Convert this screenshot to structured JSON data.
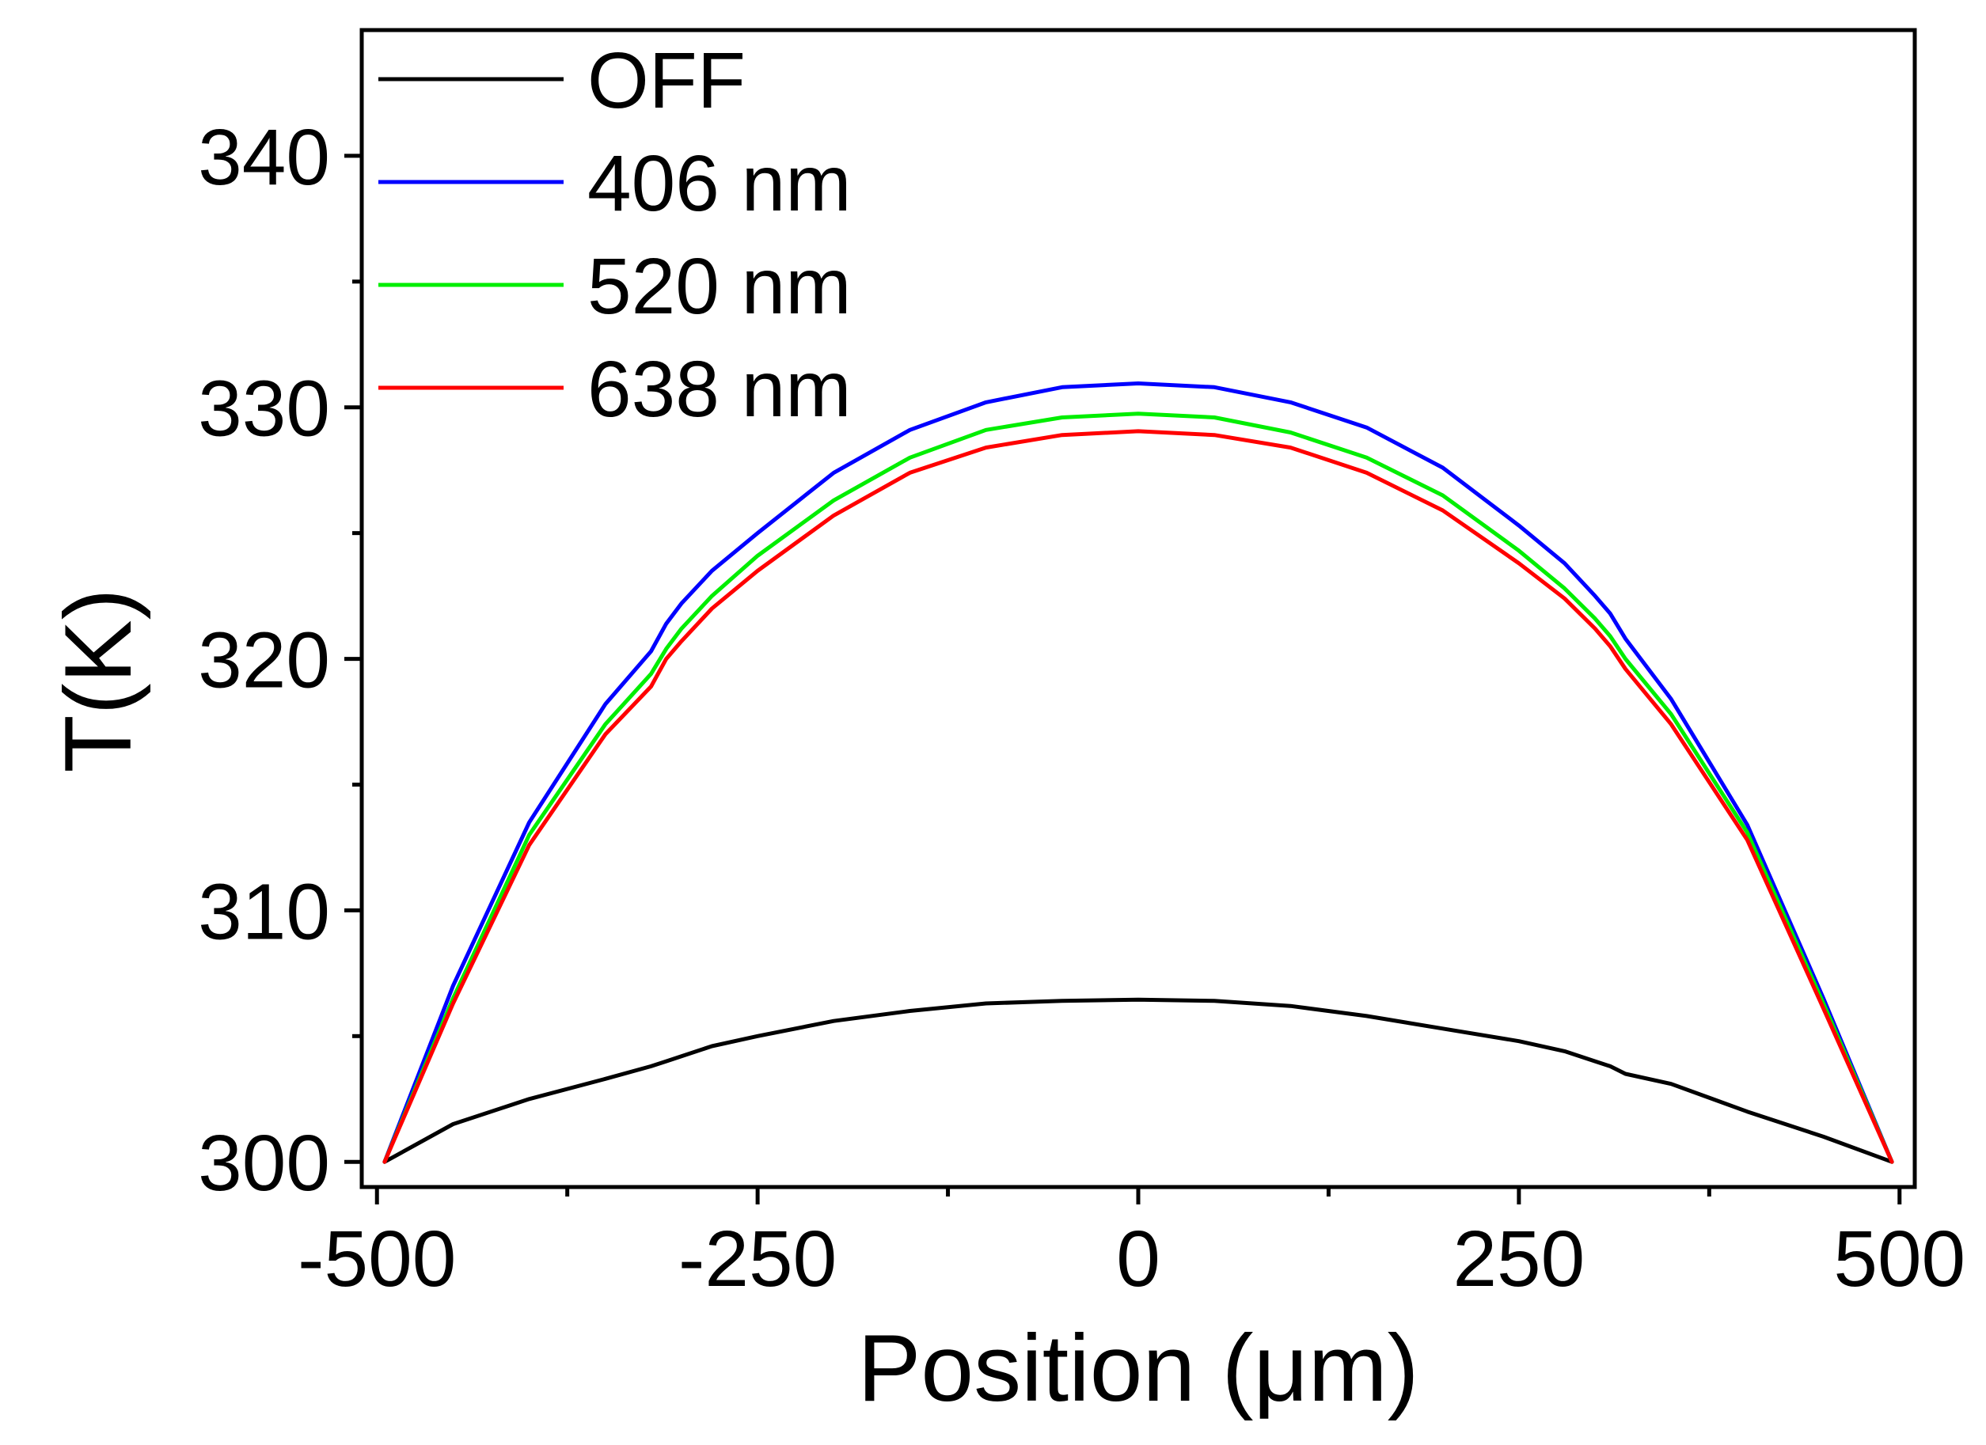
{
  "chart_data": {
    "type": "line",
    "title": "",
    "xlabel": "Position (μm)",
    "ylabel": "T(K)",
    "xlim": [
      -510,
      510
    ],
    "ylim": [
      299,
      345
    ],
    "x_major_ticks": [
      -500,
      -250,
      0,
      250,
      500
    ],
    "x_minor_ticks": [
      -375,
      -125,
      125,
      375
    ],
    "x_tick_labels": [
      "-500",
      "-250",
      "0",
      "250",
      "500"
    ],
    "y_major_ticks": [
      300,
      310,
      320,
      330,
      340
    ],
    "y_minor_ticks": [
      305,
      315,
      325,
      335
    ],
    "y_tick_labels": [
      "300",
      "310",
      "320",
      "330",
      "340"
    ],
    "grid": false,
    "legend_position": "top-left",
    "x": [
      -495,
      -450,
      -400,
      -350,
      -320,
      -310,
      -300,
      -280,
      -250,
      -200,
      -150,
      -100,
      -50,
      0,
      50,
      100,
      150,
      200,
      250,
      280,
      300,
      310,
      320,
      350,
      400,
      450,
      495
    ],
    "series": [
      {
        "name": "OFF",
        "color": "#000000",
        "values": [
          300.0,
          301.5,
          302.5,
          303.3,
          303.8,
          304.0,
          304.2,
          304.6,
          305.0,
          305.6,
          306.0,
          306.3,
          306.4,
          306.45,
          306.4,
          306.2,
          305.8,
          305.3,
          304.8,
          304.4,
          304.0,
          303.8,
          303.5,
          303.1,
          302.0,
          301.0,
          300.0
        ]
      },
      {
        "name": "406 nm",
        "color": "#0000ff",
        "values": [
          300.0,
          307.0,
          313.5,
          318.2,
          320.3,
          321.4,
          322.2,
          323.5,
          325.0,
          327.4,
          329.1,
          330.2,
          330.8,
          330.95,
          330.8,
          330.2,
          329.2,
          327.6,
          325.3,
          323.8,
          322.5,
          321.8,
          320.8,
          318.4,
          313.4,
          306.5,
          300.0
        ]
      },
      {
        "name": "520 nm",
        "color": "#00ee00",
        "values": [
          300.0,
          306.5,
          313.0,
          317.4,
          319.4,
          320.4,
          321.2,
          322.5,
          324.1,
          326.3,
          328.0,
          329.1,
          329.6,
          329.75,
          329.6,
          329.0,
          328.0,
          326.5,
          324.3,
          322.8,
          321.6,
          320.9,
          320.0,
          317.8,
          313.1,
          306.3,
          300.0
        ]
      },
      {
        "name": "638 nm",
        "color": "#ff0000",
        "values": [
          300.0,
          306.3,
          312.6,
          317.0,
          318.9,
          320.0,
          320.7,
          322.0,
          323.5,
          325.7,
          327.4,
          328.4,
          328.9,
          329.05,
          328.9,
          328.4,
          327.4,
          325.9,
          323.8,
          322.4,
          321.2,
          320.5,
          319.6,
          317.4,
          312.8,
          306.1,
          300.0
        ]
      }
    ]
  }
}
